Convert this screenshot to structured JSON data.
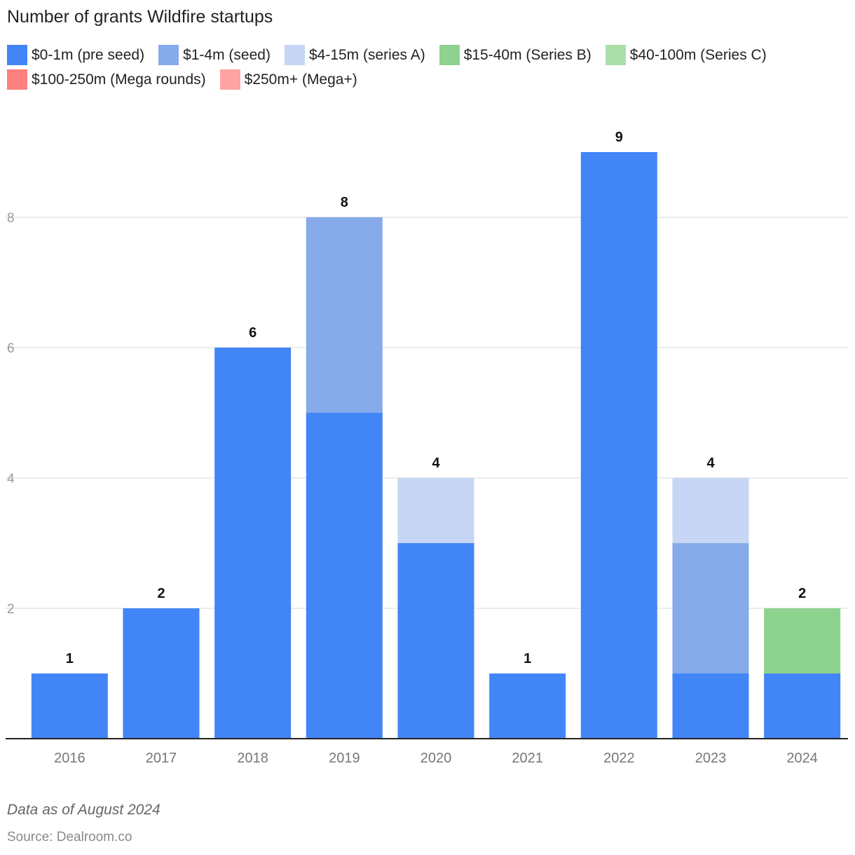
{
  "chart_data": {
    "type": "bar",
    "stacked": true,
    "title": "Number of grants Wildfire startups",
    "categories": [
      "2016",
      "2017",
      "2018",
      "2019",
      "2020",
      "2021",
      "2022",
      "2023",
      "2024"
    ],
    "series": [
      {
        "name": "$0-1m (pre seed)",
        "color": "#4285f7",
        "values": [
          1,
          2,
          6,
          5,
          3,
          1,
          9,
          1,
          1
        ]
      },
      {
        "name": "$1-4m (seed)",
        "color": "#86aaea",
        "values": [
          0,
          0,
          0,
          3,
          0,
          0,
          0,
          2,
          0
        ]
      },
      {
        "name": "$4-15m (series A)",
        "color": "#c6d6f4",
        "values": [
          0,
          0,
          0,
          0,
          1,
          0,
          0,
          1,
          0
        ]
      },
      {
        "name": "$15-40m (Series B)",
        "color": "#8dd28e",
        "values": [
          0,
          0,
          0,
          0,
          0,
          0,
          0,
          0,
          1
        ]
      },
      {
        "name": "$40-100m (Series C)",
        "color": "#abdfaa",
        "values": [
          0,
          0,
          0,
          0,
          0,
          0,
          0,
          0,
          0
        ]
      },
      {
        "name": "$100-250m (Mega rounds)",
        "color": "#fd7f7e",
        "values": [
          0,
          0,
          0,
          0,
          0,
          0,
          0,
          0,
          0
        ]
      },
      {
        "name": "$250m+ (Mega+)",
        "color": "#fea3a1",
        "values": [
          0,
          0,
          0,
          0,
          0,
          0,
          0,
          0,
          0
        ]
      }
    ],
    "totals": [
      1,
      2,
      6,
      8,
      4,
      1,
      9,
      4,
      2
    ],
    "ylim": [
      0,
      10
    ],
    "yticks": [
      2,
      4,
      6,
      8
    ],
    "grid": true,
    "legend_position": "top",
    "xlabel": "",
    "ylabel": "",
    "note": "Data as of August 2024",
    "source": "Source: Dealroom.co"
  }
}
